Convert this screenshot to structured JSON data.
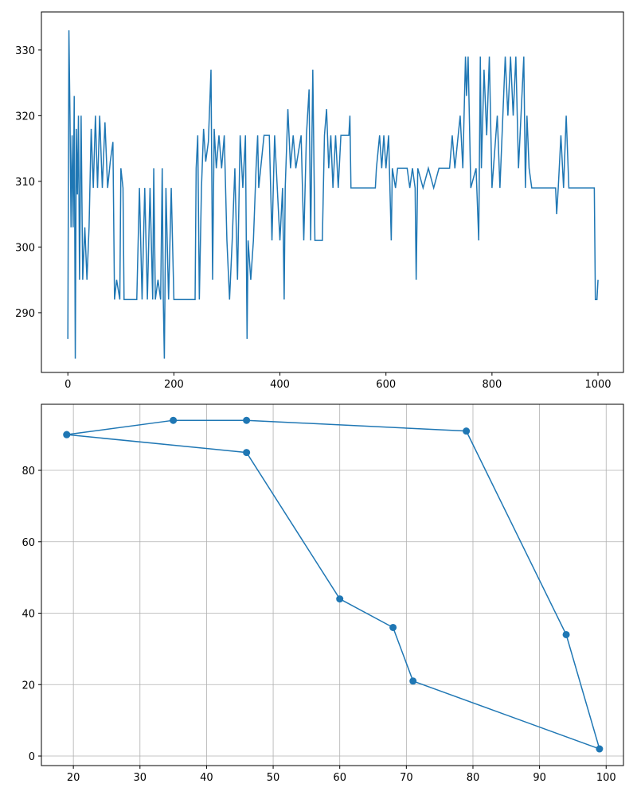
{
  "chart_data": [
    {
      "type": "line",
      "color": "#1f77b4",
      "grid": false,
      "markers": false,
      "x": [
        0,
        2,
        4,
        6,
        8,
        10,
        12,
        14,
        16,
        18,
        20,
        22,
        25,
        28,
        32,
        36,
        40,
        44,
        48,
        52,
        56,
        60,
        65,
        70,
        75,
        80,
        85,
        88,
        92,
        98,
        100,
        104,
        106,
        130,
        135,
        140,
        145,
        150,
        155,
        160,
        162,
        165,
        170,
        175,
        178,
        180,
        182,
        185,
        190,
        195,
        200,
        240,
        242,
        245,
        248,
        252,
        256,
        260,
        265,
        270,
        273,
        276,
        280,
        285,
        290,
        295,
        300,
        305,
        310,
        315,
        320,
        325,
        330,
        335,
        338,
        340,
        345,
        350,
        355,
        358,
        360,
        370,
        380,
        385,
        390,
        395,
        400,
        405,
        408,
        410,
        415,
        420,
        425,
        430,
        440,
        445,
        450,
        455,
        458,
        462,
        466,
        470,
        480,
        484,
        488,
        492,
        496,
        500,
        505,
        510,
        515,
        530,
        532,
        534,
        580,
        582,
        588,
        592,
        596,
        600,
        605,
        610,
        612,
        618,
        622,
        640,
        645,
        650,
        655,
        657,
        660,
        670,
        680,
        690,
        700,
        720,
        725,
        730,
        740,
        745,
        750,
        752,
        755,
        760,
        770,
        775,
        778,
        780,
        785,
        790,
        795,
        800,
        810,
        815,
        825,
        830,
        835,
        840,
        845,
        850,
        860,
        863,
        866,
        870,
        875,
        920,
        922,
        925,
        930,
        935,
        940,
        945,
        993,
        995,
        998,
        1000
      ],
      "values": [
        286,
        333,
        320,
        303,
        317,
        303,
        323,
        283,
        318,
        308,
        320,
        295,
        320,
        295,
        303,
        295,
        303,
        318,
        309,
        320,
        309,
        320,
        309,
        319,
        309,
        313,
        316,
        292,
        295,
        292,
        312,
        309,
        292,
        292,
        309,
        292,
        309,
        292,
        309,
        292,
        312,
        292,
        295,
        292,
        312,
        292,
        283,
        309,
        292,
        309,
        292,
        292,
        312,
        317,
        292,
        309,
        318,
        313,
        316,
        327,
        295,
        318,
        312,
        317,
        312,
        317,
        301,
        292,
        301,
        312,
        295,
        317,
        309,
        317,
        286,
        301,
        295,
        301,
        312,
        317,
        309,
        317,
        317,
        301,
        317,
        309,
        301,
        309,
        292,
        309,
        321,
        312,
        317,
        312,
        317,
        301,
        317,
        324,
        301,
        327,
        301,
        301,
        301,
        317,
        321,
        312,
        317,
        309,
        317,
        309,
        317,
        317,
        320,
        309,
        309,
        312,
        317,
        312,
        317,
        312,
        317,
        301,
        312,
        309,
        312,
        312,
        309,
        312,
        309,
        295,
        312,
        309,
        312,
        309,
        312,
        312,
        317,
        312,
        320,
        312,
        329,
        323,
        329,
        309,
        312,
        301,
        329,
        312,
        327,
        317,
        329,
        309,
        320,
        309,
        329,
        320,
        329,
        320,
        329,
        312,
        329,
        309,
        320,
        312,
        309,
        309,
        305,
        309,
        317,
        309,
        320,
        309,
        309,
        292,
        292,
        295
      ],
      "xlim": [
        -49.9,
        1048
      ],
      "ylim": [
        280.9,
        335.8
      ],
      "xticks": [
        0,
        200,
        400,
        600,
        800,
        1000
      ],
      "yticks": [
        290,
        300,
        310,
        320,
        330
      ]
    },
    {
      "type": "line",
      "color": "#1f77b4",
      "grid": true,
      "markers": true,
      "x": [
        19,
        35,
        46,
        79,
        94,
        99,
        71,
        68,
        60,
        46,
        19
      ],
      "values": [
        90,
        94,
        94,
        91,
        34,
        2,
        21,
        36,
        44,
        85,
        90
      ],
      "xlim": [
        15.2,
        102.6
      ],
      "ylim": [
        -2.67,
        98.5
      ],
      "xticks": [
        20,
        30,
        40,
        50,
        60,
        70,
        80,
        90,
        100
      ],
      "yticks": [
        0,
        20,
        40,
        60,
        80
      ]
    }
  ]
}
